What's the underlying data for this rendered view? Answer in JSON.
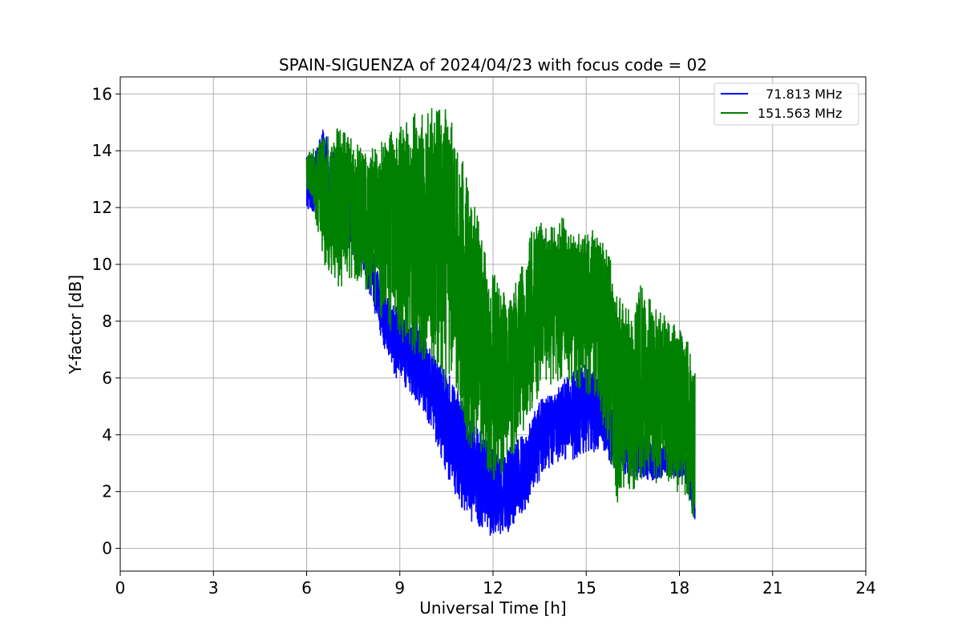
{
  "chart_data": {
    "type": "line",
    "title": "SPAIN-SIGUENZA of 2024/04/23 with focus code = 02",
    "xlabel": "Universal Time [h]",
    "ylabel": "Y-factor [dB]",
    "xlim": [
      0,
      24
    ],
    "ylim": [
      -0.8,
      16.6
    ],
    "xticks": [
      0,
      3,
      6,
      9,
      12,
      15,
      18,
      21,
      24
    ],
    "yticks": [
      0,
      2,
      4,
      6,
      8,
      10,
      12,
      14,
      16
    ],
    "grid": true,
    "legend_position": "top-right",
    "series": [
      {
        "name": "  71.813 MHz",
        "color": "#0000ff",
        "x": [
          6.0,
          6.25,
          6.5,
          6.75,
          7.0,
          7.25,
          7.5,
          7.75,
          8.0,
          8.25,
          8.5,
          8.75,
          9.0,
          9.25,
          9.5,
          9.75,
          10.0,
          10.25,
          10.5,
          10.75,
          11.0,
          11.25,
          11.5,
          11.75,
          12.0,
          12.25,
          12.5,
          12.75,
          13.0,
          13.25,
          13.5,
          13.75,
          14.0,
          14.25,
          14.5,
          14.75,
          15.0,
          15.25,
          15.5,
          15.75,
          16.0,
          16.25,
          16.5,
          16.75,
          17.0,
          17.25,
          17.5,
          17.75,
          18.0,
          18.25,
          18.5
        ],
        "low": [
          12.0,
          11.8,
          11.5,
          11.3,
          10.8,
          10.4,
          10.2,
          10.0,
          9.0,
          8.0,
          7.0,
          6.2,
          5.8,
          5.6,
          5.2,
          4.8,
          4.2,
          3.4,
          2.6,
          2.0,
          1.4,
          1.0,
          0.8,
          0.7,
          0.2,
          0.4,
          0.5,
          0.8,
          1.3,
          1.8,
          2.4,
          2.8,
          3.0,
          3.1,
          3.0,
          3.2,
          3.3,
          3.4,
          3.6,
          3.0,
          2.6,
          2.6,
          2.5,
          2.5,
          2.4,
          2.4,
          2.5,
          2.5,
          2.4,
          2.2,
          0.8
        ],
        "high": [
          13.8,
          14.0,
          14.9,
          14.2,
          13.6,
          13.0,
          12.6,
          11.8,
          11.3,
          10.0,
          9.0,
          8.6,
          8.4,
          8.0,
          8.3,
          7.6,
          7.0,
          6.6,
          6.2,
          5.9,
          5.2,
          4.6,
          4.4,
          4.2,
          3.4,
          3.2,
          3.5,
          3.8,
          4.0,
          4.6,
          5.2,
          5.4,
          5.6,
          5.9,
          6.2,
          6.5,
          6.5,
          6.3,
          5.8,
          5.2,
          4.6,
          4.5,
          4.0,
          4.2,
          3.8,
          3.6,
          3.6,
          3.5,
          3.4,
          3.3,
          2.0
        ]
      },
      {
        "name": "151.563 MHz",
        "color": "#008000",
        "x": [
          6.0,
          6.25,
          6.5,
          6.75,
          7.0,
          7.25,
          7.5,
          7.75,
          8.0,
          8.25,
          8.5,
          8.75,
          9.0,
          9.25,
          9.5,
          9.75,
          10.0,
          10.25,
          10.5,
          10.75,
          11.0,
          11.25,
          11.5,
          11.75,
          12.0,
          12.25,
          12.5,
          12.75,
          13.0,
          13.25,
          13.5,
          13.75,
          14.0,
          14.25,
          14.5,
          14.75,
          15.0,
          15.25,
          15.5,
          15.75,
          16.0,
          16.25,
          16.5,
          16.75,
          17.0,
          17.25,
          17.5,
          17.75,
          18.0,
          18.25,
          18.5
        ],
        "low": [
          12.5,
          11.8,
          10.2,
          9.5,
          9.0,
          9.3,
          9.5,
          9.2,
          9.0,
          8.5,
          7.8,
          7.5,
          7.3,
          7.0,
          6.8,
          6.6,
          6.4,
          6.1,
          5.6,
          5.0,
          4.2,
          3.6,
          3.2,
          2.9,
          2.2,
          2.5,
          3.0,
          3.5,
          4.2,
          4.9,
          5.4,
          5.7,
          5.8,
          5.9,
          5.8,
          5.6,
          5.4,
          5.2,
          4.5,
          3.2,
          1.5,
          2.2,
          2.0,
          2.4,
          2.5,
          2.3,
          2.4,
          2.2,
          1.9,
          1.8,
          0.3
        ],
        "high": [
          13.8,
          14.2,
          14.4,
          14.6,
          14.8,
          14.6,
          14.4,
          14.2,
          14.0,
          14.2,
          14.4,
          14.8,
          14.9,
          15.2,
          15.5,
          15.3,
          15.6,
          15.8,
          15.4,
          14.8,
          13.8,
          12.8,
          11.8,
          10.5,
          10.0,
          9.3,
          8.6,
          9.4,
          10.5,
          11.2,
          11.5,
          11.3,
          11.4,
          11.8,
          11.3,
          11.2,
          11.0,
          11.4,
          11.1,
          10.5,
          9.0,
          8.7,
          8.5,
          9.3,
          8.8,
          8.6,
          8.4,
          8.0,
          7.8,
          7.4,
          6.4
        ]
      }
    ]
  }
}
